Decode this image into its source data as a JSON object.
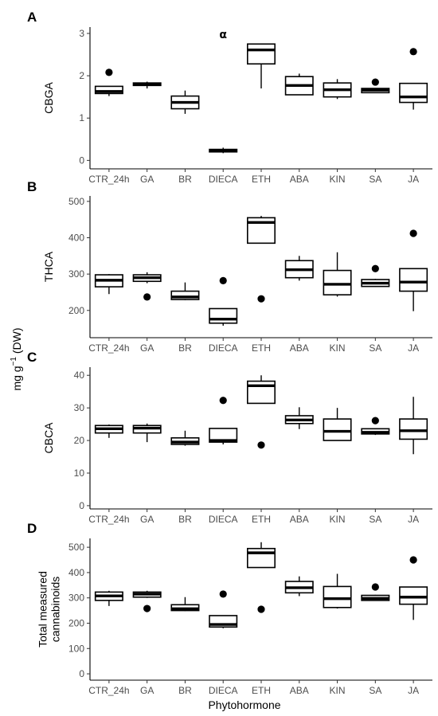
{
  "figure": {
    "shared_ylabel": "mg g-1 (DW)",
    "shared_ylabel_main": "mg g",
    "shared_ylabel_sup": "−1",
    "shared_ylabel_tail": " (DW)",
    "xlabel": "Phytohormone"
  },
  "chart_data": [
    {
      "type": "box",
      "panel": "A",
      "ylabel": "CBGA",
      "ylabel_lines": [
        "CBGA"
      ],
      "categories": [
        "CTR_24h",
        "GA",
        "BR",
        "DIECA",
        "ETH",
        "ABA",
        "KIN",
        "SA",
        "JA"
      ],
      "ylim": [
        -0.2,
        3.15
      ],
      "yticks": [
        0,
        1,
        2,
        3
      ],
      "boxes": [
        {
          "min": 1.52,
          "q1": 1.58,
          "median": 1.63,
          "q3": 1.75,
          "max": 1.75,
          "outliers": [
            2.08
          ]
        },
        {
          "min": 1.7,
          "q1": 1.77,
          "median": 1.79,
          "q3": 1.83,
          "max": 1.86,
          "outliers": []
        },
        {
          "min": 1.1,
          "q1": 1.22,
          "median": 1.37,
          "q3": 1.52,
          "max": 1.65,
          "outliers": []
        },
        {
          "min": 0.17,
          "q1": 0.2,
          "median": 0.23,
          "q3": 0.26,
          "max": 0.3,
          "outliers": []
        },
        {
          "min": 1.7,
          "q1": 2.28,
          "median": 2.61,
          "q3": 2.75,
          "max": 2.75,
          "outliers": []
        },
        {
          "min": 1.55,
          "q1": 1.55,
          "median": 1.77,
          "q3": 1.98,
          "max": 2.05,
          "outliers": []
        },
        {
          "min": 1.45,
          "q1": 1.5,
          "median": 1.67,
          "q3": 1.83,
          "max": 1.92,
          "outliers": []
        },
        {
          "min": 1.6,
          "q1": 1.6,
          "median": 1.66,
          "q3": 1.7,
          "max": 1.7,
          "outliers": [
            1.85
          ]
        },
        {
          "min": 1.2,
          "q1": 1.37,
          "median": 1.5,
          "q3": 1.82,
          "max": 1.82,
          "outliers": [
            2.57
          ]
        }
      ],
      "annotations": [
        {
          "text": "α",
          "category": "DIECA",
          "y": 2.98
        }
      ]
    },
    {
      "type": "box",
      "panel": "B",
      "ylabel": "THCA",
      "ylabel_lines": [
        "THCA"
      ],
      "categories": [
        "CTR_24h",
        "GA",
        "BR",
        "DIECA",
        "ETH",
        "ABA",
        "KIN",
        "SA",
        "JA"
      ],
      "ylim": [
        125,
        515
      ],
      "yticks": [
        200,
        300,
        400,
        500
      ],
      "boxes": [
        {
          "min": 245,
          "q1": 265,
          "median": 283,
          "q3": 298,
          "max": 300,
          "outliers": []
        },
        {
          "min": 275,
          "q1": 280,
          "median": 290,
          "q3": 298,
          "max": 305,
          "outliers": [
            237
          ]
        },
        {
          "min": 228,
          "q1": 230,
          "median": 237,
          "q3": 253,
          "max": 277,
          "outliers": []
        },
        {
          "min": 158,
          "q1": 165,
          "median": 176,
          "q3": 205,
          "max": 205,
          "outliers": [
            282
          ]
        },
        {
          "min": 385,
          "q1": 385,
          "median": 442,
          "q3": 455,
          "max": 460,
          "outliers": [
            232
          ]
        },
        {
          "min": 282,
          "q1": 290,
          "median": 312,
          "q3": 337,
          "max": 350,
          "outliers": []
        },
        {
          "min": 238,
          "q1": 243,
          "median": 272,
          "q3": 310,
          "max": 360,
          "outliers": []
        },
        {
          "min": 265,
          "q1": 266,
          "median": 275,
          "q3": 285,
          "max": 287,
          "outliers": [
            315
          ]
        },
        {
          "min": 198,
          "q1": 253,
          "median": 278,
          "q3": 315,
          "max": 315,
          "outliers": [
            412
          ]
        }
      ]
    },
    {
      "type": "box",
      "panel": "C",
      "ylabel": "CBCA",
      "ylabel_lines": [
        "CBCA"
      ],
      "categories": [
        "CTR_24h",
        "GA",
        "BR",
        "DIECA",
        "ETH",
        "ABA",
        "KIN",
        "SA",
        "JA"
      ],
      "ylim": [
        -1,
        42.5
      ],
      "yticks": [
        0,
        10,
        20,
        30,
        40
      ],
      "boxes": [
        {
          "min": 20.8,
          "q1": 22.3,
          "median": 23.6,
          "q3": 24.6,
          "max": 24.9,
          "outliers": []
        },
        {
          "min": 19.5,
          "q1": 22.3,
          "median": 23.8,
          "q3": 24.6,
          "max": 25.2,
          "outliers": []
        },
        {
          "min": 18.4,
          "q1": 18.8,
          "median": 19.5,
          "q3": 20.8,
          "max": 23.0,
          "outliers": []
        },
        {
          "min": 18.8,
          "q1": 19.5,
          "median": 20.0,
          "q3": 23.7,
          "max": 23.7,
          "outliers": [
            32.3
          ]
        },
        {
          "min": 31.4,
          "q1": 31.4,
          "median": 36.8,
          "q3": 38.2,
          "max": 40.0,
          "outliers": [
            18.6
          ]
        },
        {
          "min": 23.5,
          "q1": 25.2,
          "median": 26.3,
          "q3": 27.6,
          "max": 30.2,
          "outliers": []
        },
        {
          "min": 20.0,
          "q1": 20.0,
          "median": 22.8,
          "q3": 26.6,
          "max": 30.0,
          "outliers": []
        },
        {
          "min": 21.7,
          "q1": 22.0,
          "median": 22.5,
          "q3": 23.6,
          "max": 23.6,
          "outliers": [
            26.1
          ]
        },
        {
          "min": 15.8,
          "q1": 20.4,
          "median": 23.0,
          "q3": 26.6,
          "max": 33.4,
          "outliers": []
        }
      ]
    },
    {
      "type": "box",
      "panel": "D",
      "ylabel": "Total measured cannabinoids",
      "ylabel_lines": [
        "Total measured",
        "cannabinoids"
      ],
      "categories": [
        "CTR_24h",
        "GA",
        "BR",
        "DIECA",
        "ETH",
        "ABA",
        "KIN",
        "SA",
        "JA"
      ],
      "ylim": [
        -25,
        535
      ],
      "yticks": [
        0,
        100,
        200,
        300,
        400,
        500
      ],
      "boxes": [
        {
          "min": 268,
          "q1": 290,
          "median": 308,
          "q3": 323,
          "max": 328,
          "outliers": []
        },
        {
          "min": 300,
          "q1": 303,
          "median": 315,
          "q3": 323,
          "max": 328,
          "outliers": [
            258
          ]
        },
        {
          "min": 248,
          "q1": 250,
          "median": 257,
          "q3": 273,
          "max": 303,
          "outliers": []
        },
        {
          "min": 180,
          "q1": 185,
          "median": 195,
          "q3": 230,
          "max": 230,
          "outliers": [
            315
          ]
        },
        {
          "min": 420,
          "q1": 420,
          "median": 478,
          "q3": 495,
          "max": 520,
          "outliers": [
            255
          ]
        },
        {
          "min": 307,
          "q1": 320,
          "median": 340,
          "q3": 365,
          "max": 385,
          "outliers": []
        },
        {
          "min": 258,
          "q1": 262,
          "median": 297,
          "q3": 345,
          "max": 395,
          "outliers": []
        },
        {
          "min": 288,
          "q1": 290,
          "median": 298,
          "q3": 310,
          "max": 312,
          "outliers": [
            343
          ]
        },
        {
          "min": 213,
          "q1": 275,
          "median": 303,
          "q3": 343,
          "max": 343,
          "outliers": [
            450
          ]
        }
      ]
    }
  ]
}
